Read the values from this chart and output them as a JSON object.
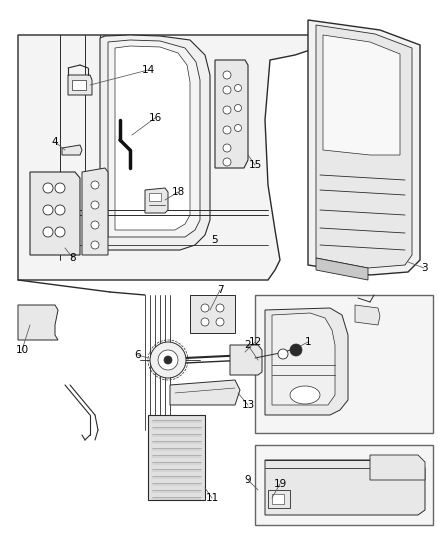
{
  "bg_color": "#ffffff",
  "line_color": "#2a2a2a",
  "gray_fill": "#e8e8e8",
  "light_fill": "#f4f4f4",
  "dark_fill": "#c8c8c8",
  "fig_width": 4.38,
  "fig_height": 5.33,
  "dpi": 100
}
